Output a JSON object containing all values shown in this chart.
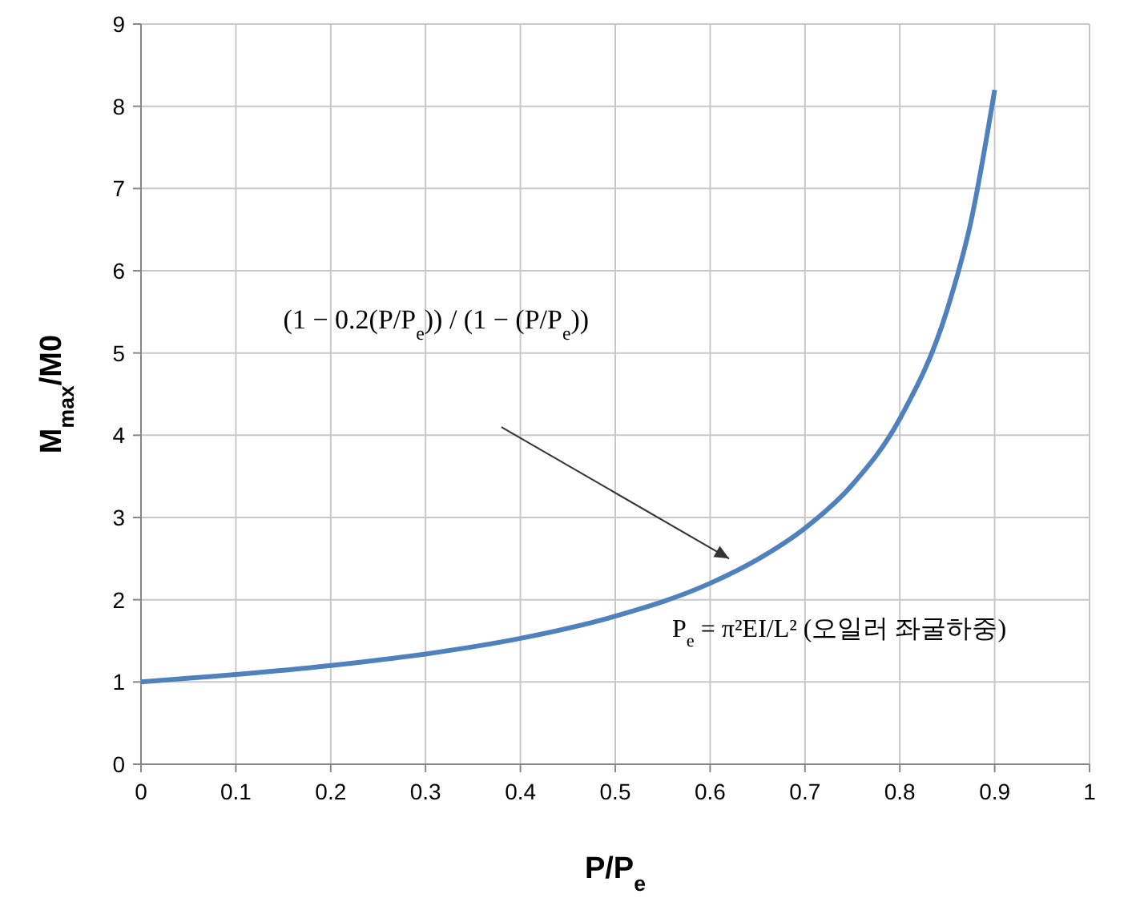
{
  "chart_data": {
    "type": "line",
    "xlabel": "P/P$_{e}$",
    "ylabel": "M$_{max}$/M0",
    "x": [
      0,
      0.1,
      0.2,
      0.3,
      0.4,
      0.5,
      0.6,
      0.65,
      0.7,
      0.75,
      0.8,
      0.85,
      0.875,
      0.9
    ],
    "series": [
      {
        "color": "#4f81bd",
        "values": [
          1,
          1.09,
          1.2,
          1.34,
          1.53,
          1.8,
          2.2,
          2.49,
          2.87,
          3.4,
          4.2,
          5.53,
          6.6,
          8.2
        ]
      }
    ],
    "xlim": [
      0,
      1
    ],
    "xticks": [
      0,
      0.1,
      0.2,
      0.3,
      0.4,
      0.5,
      0.6,
      0.7,
      0.8,
      0.9,
      1
    ],
    "ylim": [
      0,
      9
    ],
    "yticks": [
      0,
      1,
      2,
      3,
      4,
      5,
      6,
      7,
      8,
      9
    ],
    "grid": true,
    "marker": "none",
    "line_style": "solid",
    "annotations": [
      "(1 − 0.2(P/P$_{e}$)) / (1 − (P/P$_{e}$))",
      "P$_{e}$ = π²EI/L²  (오일러 좌굴하중)"
    ]
  }
}
